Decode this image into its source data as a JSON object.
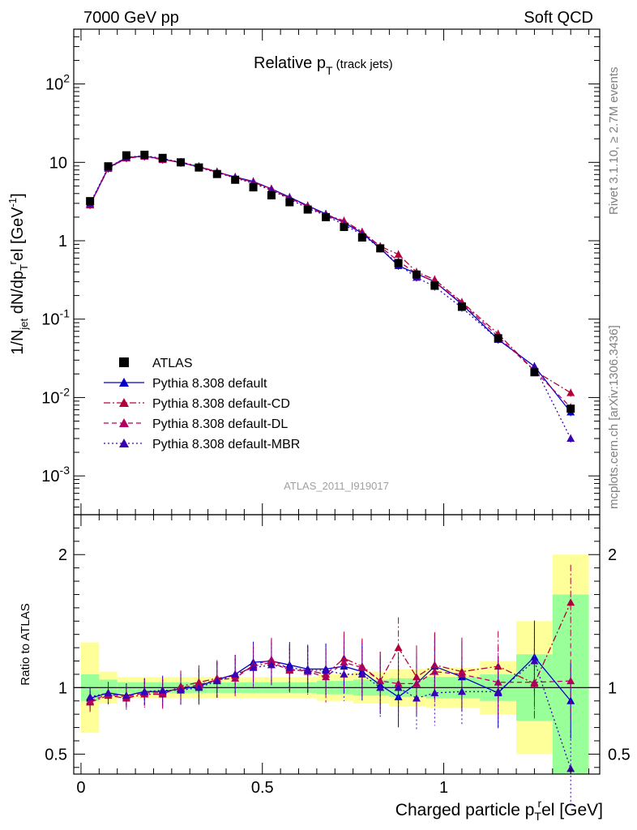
{
  "header": {
    "left": "7000 GeV pp",
    "right": "Soft QCD",
    "main_title": "Relative p",
    "main_title_sub": "T",
    "main_title_suffix": " (track jets)"
  },
  "side_labels": {
    "top": "Rivet 3.1.10, ≥ 2.7M events",
    "bottom": "mcplots.cern.ch [arXiv:1306.3436]"
  },
  "watermark": "ATLAS_2011_I919017",
  "axes": {
    "y_main_label": "1/N",
    "y_main_label_sub": "jet",
    "y_main_label_mid": " dN/dp",
    "y_main_label_sub2": "T",
    "y_main_label_sup2": "r",
    "y_main_label_end": "el [GeV",
    "y_main_label_sup": "-1",
    "y_main_label_close": "]",
    "y_ratio_label": "Ratio to ATLAS",
    "x_label": "Charged particle p",
    "x_label_sub": "T",
    "x_label_sup": "r",
    "x_label_end": "el [GeV]",
    "y_main_ticks": [
      {
        "base": "10",
        "exp": "-3",
        "v": 0.001
      },
      {
        "base": "10",
        "exp": "-2",
        "v": 0.01
      },
      {
        "base": "10",
        "exp": "-1",
        "v": 0.1
      },
      {
        "base": "1",
        "exp": "",
        "v": 1
      },
      {
        "base": "10",
        "exp": "",
        "v": 10
      },
      {
        "base": "10",
        "exp": "2",
        "v": 100
      }
    ],
    "y_ratio_ticks": [
      {
        "label": "0.5",
        "v": 0.5
      },
      {
        "label": "1",
        "v": 1
      },
      {
        "label": "2",
        "v": 2
      }
    ],
    "x_ticks": [
      {
        "label": "0",
        "v": 0
      },
      {
        "label": "0.5",
        "v": 0.5
      },
      {
        "label": "1",
        "v": 1
      }
    ]
  },
  "legend": [
    {
      "name": "ATLAS",
      "color": "#000000",
      "style": "square"
    },
    {
      "name": "Pythia 8.308 default",
      "color": "#0000cc",
      "style": "solid"
    },
    {
      "name": "Pythia 8.308 default-CD",
      "color": "#b3003c",
      "style": "dashdot"
    },
    {
      "name": "Pythia 8.308 default-DL",
      "color": "#b3005e",
      "style": "dashed"
    },
    {
      "name": "Pythia 8.308 default-MBR",
      "color": "#3a00b3",
      "style": "dotted"
    }
  ],
  "chart_data": {
    "type": "scatter",
    "title": "Relative pT (track jets)",
    "xlabel": "Charged particle pTrel [GeV]",
    "ylabel": "1/Njet dN/dpTrel [GeV-1]",
    "y_scale": "log",
    "xlim": [
      -0.02,
      1.43
    ],
    "ylim": [
      0.00032,
      500
    ],
    "ratio_ylim": [
      0.35,
      2.3
    ],
    "x": [
      0.025,
      0.075,
      0.125,
      0.175,
      0.225,
      0.275,
      0.325,
      0.375,
      0.425,
      0.475,
      0.525,
      0.575,
      0.625,
      0.675,
      0.725,
      0.775,
      0.825,
      0.875,
      0.925,
      0.975,
      1.05,
      1.15,
      1.25,
      1.35
    ],
    "bin_edges": [
      0,
      0.05,
      0.1,
      0.15,
      0.2,
      0.25,
      0.3,
      0.35,
      0.4,
      0.45,
      0.5,
      0.55,
      0.6,
      0.65,
      0.7,
      0.75,
      0.8,
      0.85,
      0.9,
      0.95,
      1.0,
      1.1,
      1.2,
      1.3,
      1.4
    ],
    "series": [
      {
        "name": "ATLAS",
        "values": [
          3.2,
          8.9,
          12.3,
          12.5,
          11.4,
          10.0,
          8.6,
          7.1,
          6.0,
          4.8,
          3.8,
          3.1,
          2.5,
          2.0,
          1.5,
          1.1,
          0.8,
          0.52,
          0.37,
          0.27,
          0.145,
          0.057,
          0.021,
          0.0072
        ]
      },
      {
        "name": "Pythia 8.308 default",
        "values": [
          2.9,
          8.5,
          11.5,
          12.0,
          11.0,
          9.9,
          8.8,
          7.5,
          6.5,
          5.7,
          4.6,
          3.6,
          2.8,
          2.2,
          1.7,
          1.25,
          0.8,
          0.48,
          0.38,
          0.3,
          0.155,
          0.055,
          0.025,
          0.0065
        ]
      },
      {
        "name": "Pythia 8.308 default-CD",
        "values": [
          2.85,
          8.3,
          11.3,
          11.9,
          10.8,
          10.1,
          8.9,
          7.6,
          6.4,
          5.6,
          4.5,
          3.5,
          2.75,
          2.15,
          1.8,
          1.3,
          0.85,
          0.67,
          0.4,
          0.32,
          0.165,
          0.065,
          0.022,
          0.0115
        ]
      },
      {
        "name": "Pythia 8.308 default-DL",
        "values": [
          2.9,
          8.4,
          11.4,
          12.0,
          11.0,
          10.0,
          8.7,
          7.5,
          6.4,
          5.6,
          4.6,
          3.5,
          2.75,
          2.1,
          1.75,
          1.28,
          0.84,
          0.55,
          0.38,
          0.3,
          0.16,
          0.06,
          0.022,
          0.0075
        ]
      },
      {
        "name": "Pythia 8.308 default-MBR",
        "values": [
          3.0,
          8.6,
          11.6,
          12.2,
          11.2,
          10.0,
          8.6,
          7.4,
          6.3,
          5.4,
          4.4,
          3.4,
          2.6,
          2.1,
          1.6,
          1.2,
          0.8,
          0.5,
          0.34,
          0.26,
          0.14,
          0.055,
          0.025,
          0.003
        ]
      }
    ],
    "ratio_series": [
      {
        "name": "Pythia 8.308 default",
        "values": [
          0.92,
          0.96,
          0.94,
          0.97,
          0.97,
          0.99,
          1.01,
          1.06,
          1.1,
          1.19,
          1.2,
          1.17,
          1.14,
          1.14,
          1.16,
          1.12,
          1.02,
          0.93,
          1.03,
          1.16,
          1.08,
          0.96,
          1.23,
          0.9
        ]
      },
      {
        "name": "Pythia 8.308 default-CD",
        "values": [
          0.89,
          0.94,
          0.92,
          0.95,
          0.95,
          1.01,
          1.04,
          1.07,
          1.09,
          1.16,
          1.19,
          1.13,
          1.13,
          1.1,
          1.22,
          1.16,
          1.05,
          1.3,
          1.08,
          1.17,
          1.12,
          1.16,
          1.03,
          1.64
        ]
      },
      {
        "name": "Pythia 8.308 default-DL",
        "values": [
          0.9,
          0.95,
          0.93,
          0.96,
          0.96,
          1.0,
          1.02,
          1.06,
          1.07,
          1.17,
          1.21,
          1.14,
          1.12,
          1.08,
          1.19,
          1.15,
          1.05,
          1.03,
          1.03,
          1.12,
          1.1,
          1.04,
          1.04,
          1.05
        ]
      },
      {
        "name": "Pythia 8.308 default-MBR",
        "values": [
          0.93,
          0.96,
          0.94,
          0.97,
          0.98,
          0.98,
          1.0,
          1.05,
          1.1,
          1.15,
          1.17,
          1.15,
          1.13,
          1.13,
          1.1,
          1.1,
          1.0,
          1.0,
          0.92,
          0.96,
          0.97,
          0.97,
          1.2,
          0.39
        ]
      }
    ],
    "ratio_band_yellow": [
      0.34,
      0.12,
      0.08,
      0.08,
      0.08,
      0.08,
      0.08,
      0.08,
      0.08,
      0.08,
      0.08,
      0.08,
      0.08,
      0.1,
      0.1,
      0.12,
      0.12,
      0.14,
      0.14,
      0.15,
      0.15,
      0.2,
      0.5,
      1.0
    ],
    "ratio_band_green": [
      0.1,
      0.06,
      0.04,
      0.04,
      0.04,
      0.04,
      0.04,
      0.04,
      0.04,
      0.04,
      0.04,
      0.04,
      0.04,
      0.05,
      0.05,
      0.06,
      0.06,
      0.07,
      0.07,
      0.08,
      0.08,
      0.1,
      0.25,
      0.7
    ]
  }
}
